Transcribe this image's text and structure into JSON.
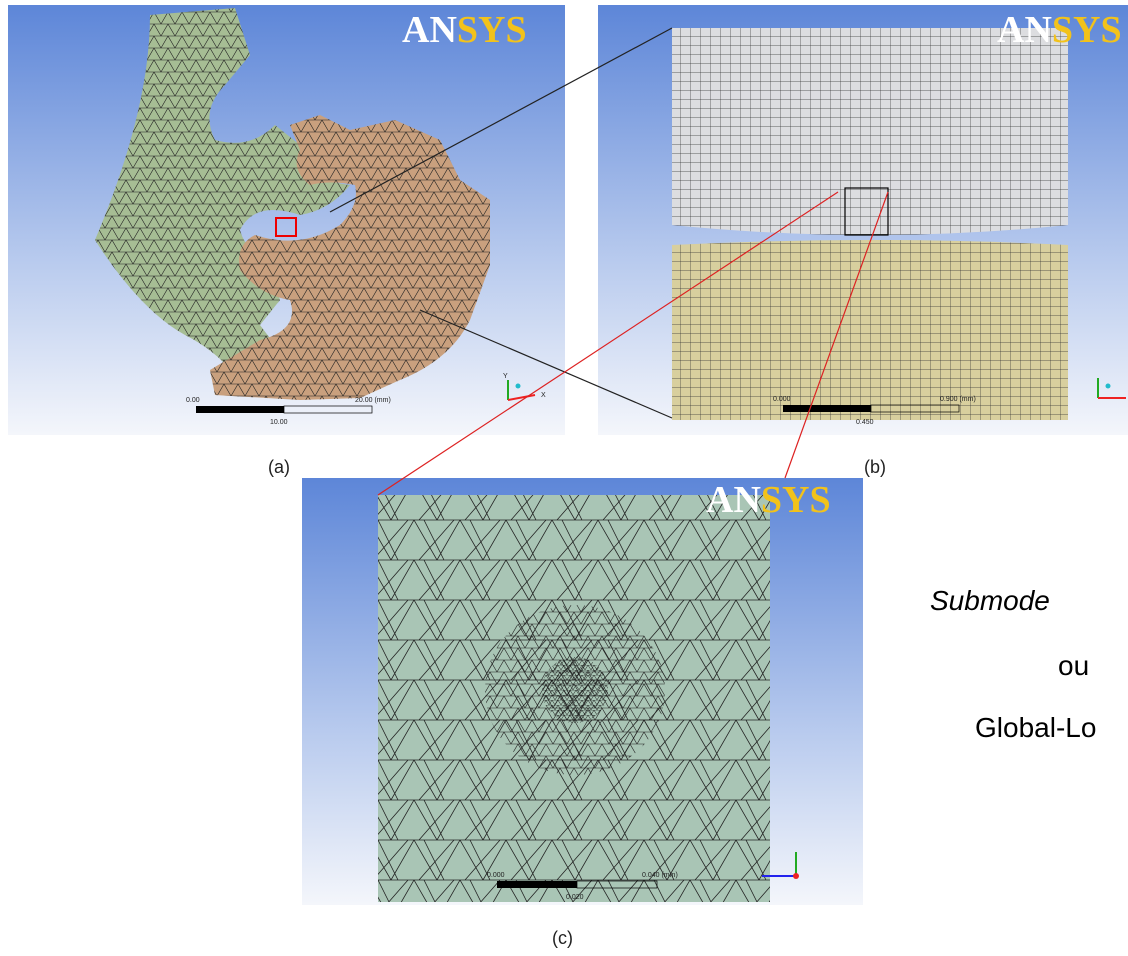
{
  "panels": [
    {
      "logo": {
        "left": "AN",
        "right": "SYS"
      },
      "caption": "(a)",
      "scale": {
        "start": "0.00",
        "mid": "10.00",
        "end": "20.00 (mm)"
      },
      "axes": {
        "y": "Y",
        "x": "X"
      }
    },
    {
      "logo": {
        "left": "AN",
        "right": "SYS"
      },
      "caption": "(b)",
      "scale": {
        "start": "0.000",
        "mid": "0.450",
        "end": "0.900 (mm)"
      }
    },
    {
      "logo": {
        "left": "AN",
        "right": "SYS"
      },
      "caption": "(c)",
      "scale": {
        "start": "0.000",
        "mid": "0.020",
        "end": "0.040 (mm)"
      }
    }
  ],
  "side_text": {
    "line1": "Submode",
    "line2": "ou",
    "line3": "Global-Lo"
  }
}
